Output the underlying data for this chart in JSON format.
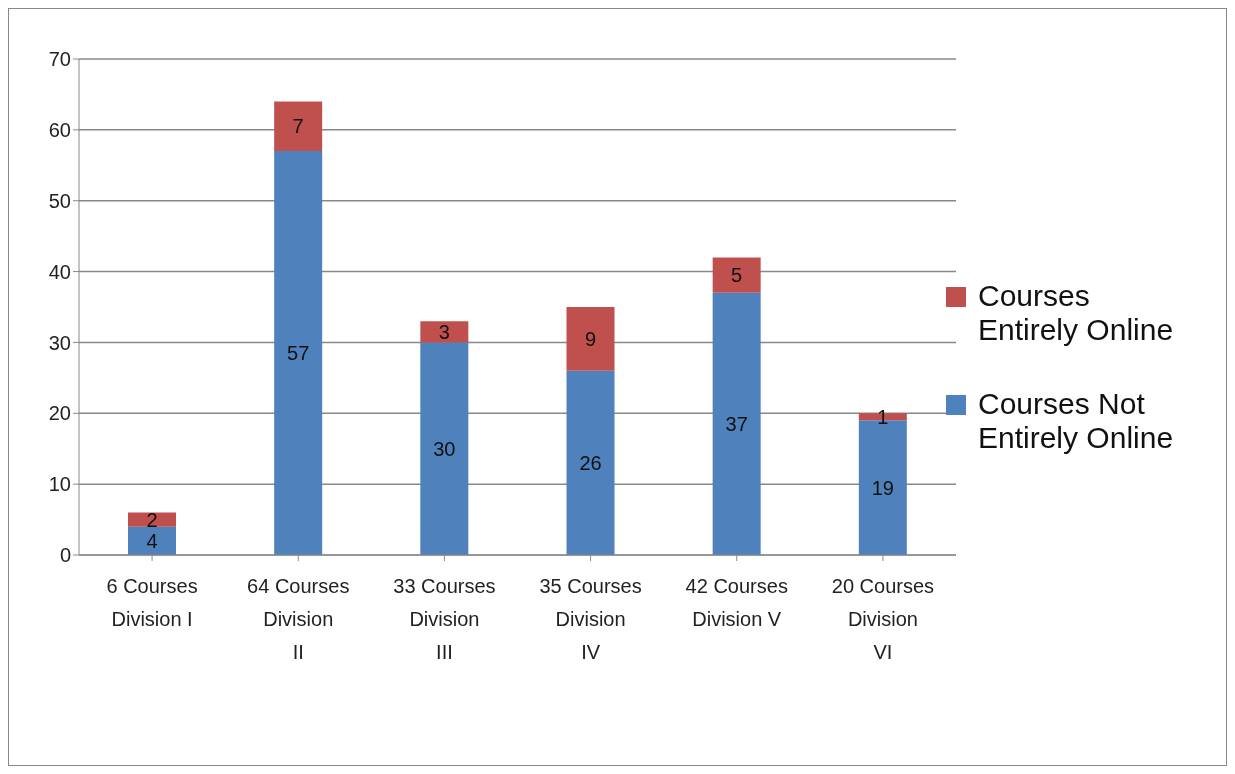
{
  "chart_data": {
    "type": "bar",
    "stacked": true,
    "categories": [
      "6 Courses Division I",
      "64 Courses Division II",
      "33 Courses Division III",
      "35 Courses Division IV",
      "42 Courses Division V",
      "20 Courses Division VI"
    ],
    "series": [
      {
        "name": "Courses Not Entirely Online",
        "color": "#4f81bd",
        "values": [
          4,
          57,
          30,
          26,
          37,
          19
        ]
      },
      {
        "name": "Courses Entirely Online",
        "color": "#c0504d",
        "values": [
          2,
          7,
          3,
          9,
          5,
          1
        ]
      }
    ],
    "ylim": [
      0,
      70
    ],
    "yticks": [
      0,
      10,
      20,
      30,
      40,
      50,
      60,
      70
    ],
    "grid": "y",
    "legend": "right",
    "data_labels": true
  }
}
